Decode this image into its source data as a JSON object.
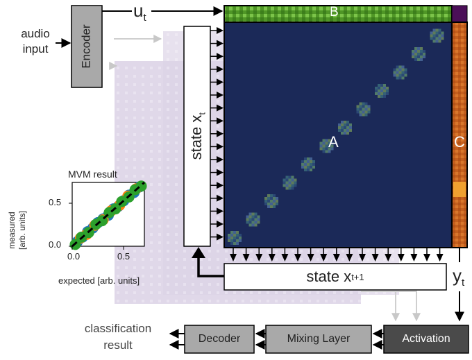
{
  "labels": {
    "audio_input_line1": "audio",
    "audio_input_line2": "input",
    "encoder": "Encoder",
    "u_main": "u",
    "u_sub": "t",
    "state_x_main": "state x",
    "state_x_sub": "t",
    "state_x1_main": "state x",
    "state_x1_sub": "t+1",
    "matrix_a": "A",
    "matrix_b": "B",
    "matrix_c": "C",
    "y_main": "y",
    "y_sub": "t",
    "activation": "Activation",
    "mixing_layer": "Mixing Layer",
    "decoder": "Decoder",
    "classification_line1": "classification",
    "classification_line2": "result"
  },
  "inset": {
    "title": "MVM result",
    "xlabel": "expected [arb. units]",
    "ylabel_line1": "measured",
    "ylabel_line2": "[arb. units]"
  },
  "chart_data": {
    "type": "scatter",
    "title": "MVM result",
    "xlabel": "expected [arb. units]",
    "ylabel": "measured [arb. units]",
    "xlim": [
      0,
      0.7
    ],
    "ylim": [
      0,
      0.7
    ],
    "xticks": [
      "0.0",
      "0.5"
    ],
    "yticks": [
      "0.0",
      "0.5"
    ],
    "series": [
      {
        "color": "#1f77b4",
        "x": [
          0.05,
          0.1,
          0.15,
          0.2,
          0.25,
          0.3,
          0.35,
          0.4,
          0.45,
          0.5,
          0.55,
          0.6,
          0.65
        ],
        "y": [
          0.05,
          0.1,
          0.16,
          0.2,
          0.26,
          0.3,
          0.34,
          0.41,
          0.44,
          0.5,
          0.56,
          0.59,
          0.65
        ]
      },
      {
        "color": "#ff7f0e",
        "x": [
          0.08,
          0.14,
          0.22,
          0.3,
          0.38,
          0.46,
          0.54,
          0.62
        ],
        "y": [
          0.09,
          0.13,
          0.23,
          0.29,
          0.39,
          0.45,
          0.55,
          0.63
        ]
      },
      {
        "color": "#2ca02c",
        "x": [
          0.03,
          0.09,
          0.16,
          0.23,
          0.29,
          0.36,
          0.42,
          0.48,
          0.55,
          0.61,
          0.67
        ],
        "y": [
          0.02,
          0.1,
          0.15,
          0.24,
          0.28,
          0.37,
          0.41,
          0.49,
          0.54,
          0.62,
          0.66
        ]
      }
    ],
    "reference_line": "y = x (dashed)",
    "grid": false
  },
  "colors": {
    "matrix_a": "#1c2a5c",
    "matrix_b": "#5aa02a",
    "matrix_c": "#c8601e",
    "grey_box": "#a9a9a9",
    "dark_box": "#4a4a4a",
    "shadow": "#d9d2e3"
  }
}
